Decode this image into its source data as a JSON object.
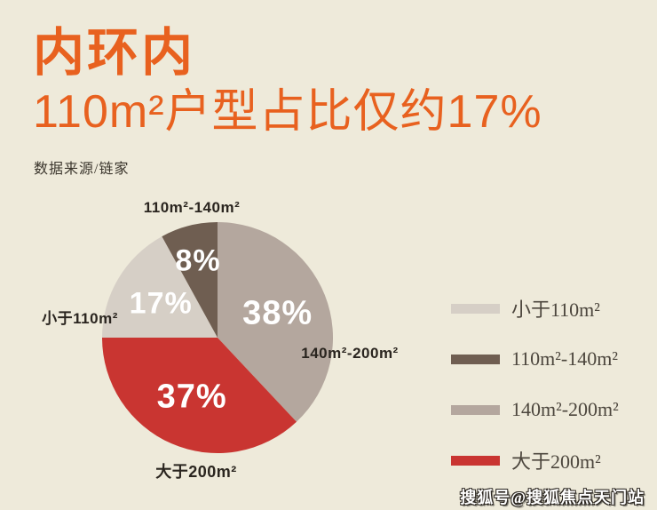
{
  "page": {
    "background_color": "#EEEADA",
    "accent_color": "#E8611F"
  },
  "header": {
    "title": "内环内",
    "subtitle": "110m²户型占比仅约17%",
    "source": "数据来源/链家"
  },
  "chart_data": {
    "type": "pie",
    "title": "内环内 110m²户型占比仅约17%",
    "source": "数据来源/链家",
    "start_angle_deg": 0,
    "direction": "clockwise",
    "legend_position": "right",
    "segments": [
      {
        "label": "140m²-200m²",
        "value": 38,
        "pct_label": "38%",
        "color": "#B4A79E"
      },
      {
        "label": "大于200m²",
        "value": 37,
        "pct_label": "37%",
        "color": "#C93531"
      },
      {
        "label": "小于110m²",
        "value": 17,
        "pct_label": "17%",
        "color": "#D6CFC6"
      },
      {
        "label": "110m²-140m²",
        "value": 8,
        "pct_label": "8%",
        "color": "#6F5E51"
      }
    ]
  },
  "legend": {
    "items": [
      {
        "label": "小于110m²",
        "color": "#D6CFC6"
      },
      {
        "label": "110m²-140m²",
        "color": "#6F5E51"
      },
      {
        "label": "140m²-200m²",
        "color": "#B4A79E"
      },
      {
        "label": "大于200m²",
        "color": "#C93531"
      }
    ]
  },
  "watermark": "搜狐号@搜狐焦点天门站"
}
